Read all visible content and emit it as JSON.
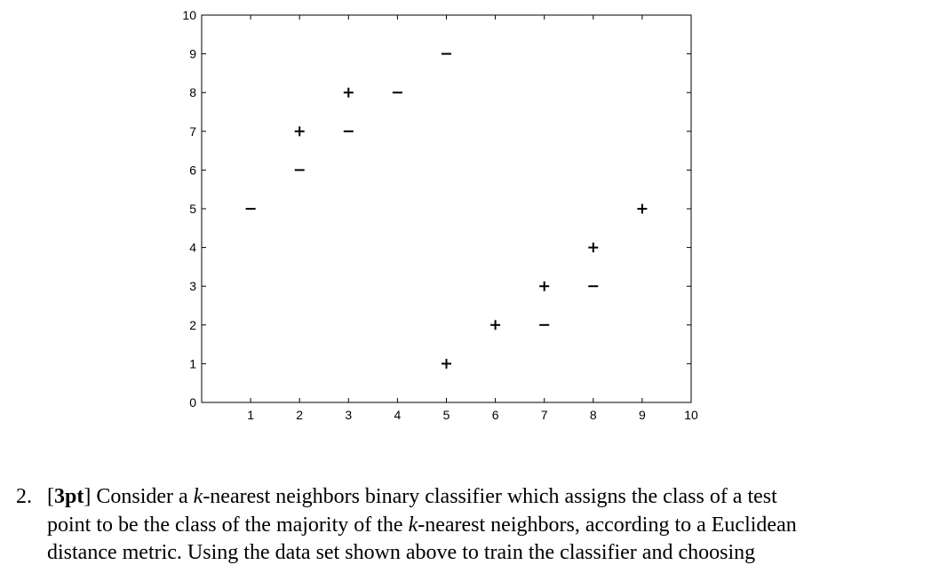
{
  "chart_data": {
    "type": "scatter",
    "title": "",
    "xlabel": "",
    "ylabel": "",
    "xlim": [
      0,
      10
    ],
    "ylim": [
      0,
      10
    ],
    "xticks": [
      "1",
      "2",
      "3",
      "4",
      "5",
      "6",
      "7",
      "8",
      "9",
      "10"
    ],
    "yticks": [
      "0",
      "1",
      "2",
      "3",
      "4",
      "5",
      "6",
      "7",
      "8",
      "9",
      "10"
    ],
    "grid": false,
    "series": [
      {
        "marker": "+",
        "points": [
          [
            2,
            7
          ],
          [
            3,
            8
          ],
          [
            5,
            1
          ],
          [
            6,
            2
          ],
          [
            7,
            3
          ],
          [
            8,
            4
          ],
          [
            9,
            5
          ]
        ]
      },
      {
        "marker": "−",
        "points": [
          [
            1,
            5
          ],
          [
            2,
            6
          ],
          [
            3,
            7
          ],
          [
            4,
            8
          ],
          [
            5,
            9
          ],
          [
            7,
            2
          ],
          [
            8,
            3
          ]
        ]
      }
    ],
    "marker_color": "#000000"
  },
  "problem": {
    "number": "2.",
    "points_open": "[",
    "points": "3pt",
    "points_close": "]",
    "line1_a": " Consider a ",
    "k": "k",
    "line1_b": "-nearest neighbors binary classifier which assigns the class of a test",
    "line2_a": "point to be the class of the majority of the ",
    "line2_b": "-nearest neighbors, according to a Euclidean",
    "line3": "distance metric. Using the data set shown above to train the classifier and choosing"
  }
}
